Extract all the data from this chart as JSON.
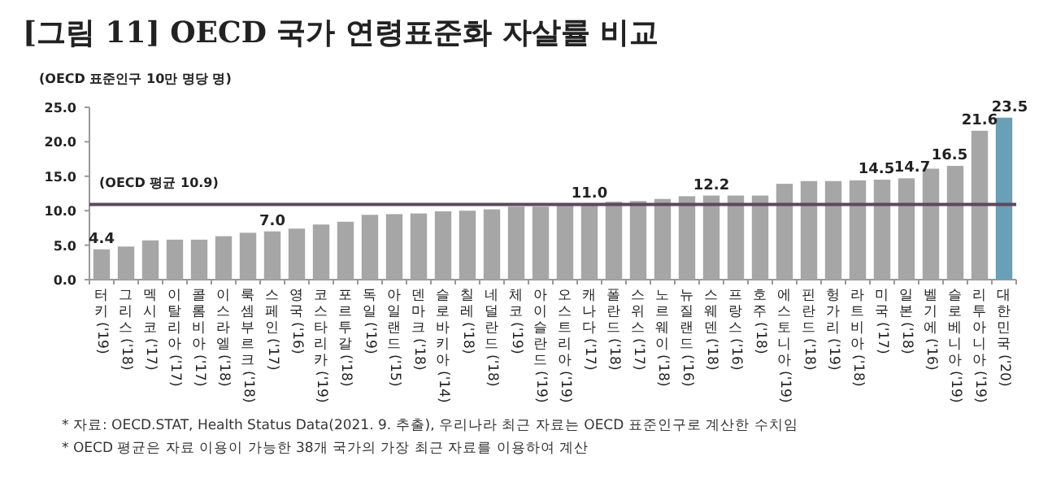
{
  "chart_data": {
    "type": "bar",
    "title": "[그림 11] OECD 국가 연령표준화 자살률 비교",
    "ylabel": "(OECD 표준인구 10만 명당 명)",
    "categories": [
      "터키('19)",
      "그리스('18)",
      "멕시코('17)",
      "이탈리아('17)",
      "콜롬비아('17)",
      "이스라엘('18)",
      "룩셈부르크('18)",
      "스페인('17)",
      "영국('16)",
      "코스타리카('19)",
      "포르투갈('18)",
      "독일('19)",
      "아일랜드('15)",
      "덴마크('18)",
      "슬로바키아('14)",
      "칠레('18)",
      "네덜란드('18)",
      "체코('19)",
      "아이슬란드('19)",
      "오스트리아('19)",
      "캐나다('17)",
      "폴란드('18)",
      "스위스('17)",
      "노르웨이('18)",
      "뉴질랜드('16)",
      "스웨덴('18)",
      "프랑스('16)",
      "호주('18)",
      "에스토니아('19)",
      "핀란드('18)",
      "헝가리('19)",
      "라트비아('18)",
      "미국('17)",
      "일본('18)",
      "벨기에('16)",
      "슬로베니아('19)",
      "리투아니아('19)",
      "대한민국('20)"
    ],
    "values": [
      4.4,
      4.8,
      5.7,
      5.8,
      5.8,
      6.3,
      6.8,
      7.0,
      7.4,
      8.0,
      8.4,
      9.4,
      9.5,
      9.6,
      9.9,
      10.0,
      10.2,
      10.6,
      10.6,
      11.0,
      11.0,
      11.3,
      11.4,
      11.7,
      12.1,
      12.2,
      12.2,
      12.2,
      13.9,
      14.3,
      14.3,
      14.4,
      14.5,
      14.7,
      16.1,
      16.5,
      21.6,
      23.5
    ],
    "value_labels": [
      "4.4",
      null,
      null,
      null,
      null,
      null,
      null,
      "7.0",
      null,
      null,
      null,
      null,
      null,
      null,
      null,
      null,
      null,
      null,
      null,
      null,
      "11.0",
      null,
      null,
      null,
      null,
      "12.2",
      null,
      null,
      null,
      null,
      null,
      null,
      "14.5",
      "14.7",
      null,
      "16.5",
      "21.6",
      "23.5"
    ],
    "colors": [
      "#a6a6a6",
      "#a6a6a6",
      "#a6a6a6",
      "#a6a6a6",
      "#a6a6a6",
      "#a6a6a6",
      "#a6a6a6",
      "#a6a6a6",
      "#a6a6a6",
      "#a6a6a6",
      "#a6a6a6",
      "#a6a6a6",
      "#a6a6a6",
      "#a6a6a6",
      "#a6a6a6",
      "#a6a6a6",
      "#a6a6a6",
      "#a6a6a6",
      "#a6a6a6",
      "#a6a6a6",
      "#a6a6a6",
      "#a6a6a6",
      "#a6a6a6",
      "#a6a6a6",
      "#a6a6a6",
      "#a6a6a6",
      "#a6a6a6",
      "#a6a6a6",
      "#a6a6a6",
      "#a6a6a6",
      "#a6a6a6",
      "#a6a6a6",
      "#a6a6a6",
      "#a6a6a6",
      "#a6a6a6",
      "#a6a6a6",
      "#a6a6a6",
      "#6a9fb8"
    ],
    "ylim": [
      0,
      25
    ],
    "yticks": [
      {
        "value": 0,
        "label": "0.0"
      },
      {
        "value": 5,
        "label": "5.0"
      },
      {
        "value": 10,
        "label": "10.0"
      },
      {
        "value": 15,
        "label": "15.0"
      },
      {
        "value": 20,
        "label": "20.0"
      },
      {
        "value": 25,
        "label": "25.0"
      }
    ],
    "ref_lines": [
      {
        "axis": "y",
        "value": 10.9,
        "label": "(OECD 평균 10.9)",
        "color": "#5a4a5c"
      }
    ],
    "annotations": [
      "* 자료: OECD.STAT, Health Status Data(2021. 9. 추출), 우리나라 최근 자료는 OECD 표준인구로 계산한 수치임",
      "* OECD 평균은 자료 이용이 가능한 38개 국가의 가장 최근 자료를 이용하여 계산"
    ]
  }
}
